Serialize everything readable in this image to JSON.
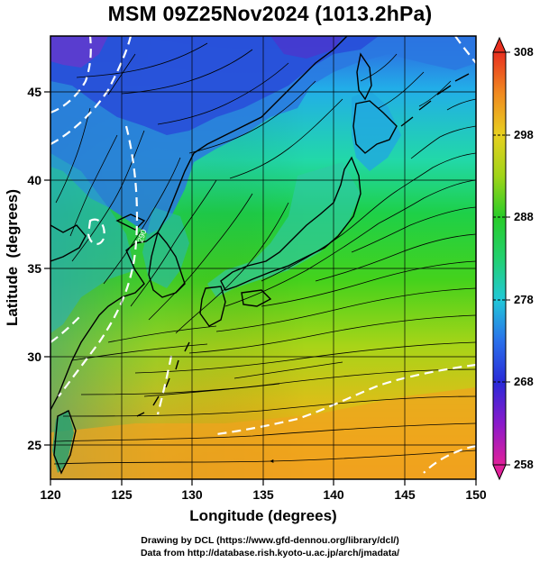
{
  "title": "MSM 09Z25Nov2024 (1013.2hPa)",
  "chart_data": {
    "type": "heatmap",
    "title": "MSM 09Z25Nov2024 (1013.2hPa)",
    "xlabel": "Longitude (degrees)",
    "ylabel": "Latitude  (degrees)",
    "xlim": [
      120,
      150
    ],
    "ylim": [
      22.5,
      47.6
    ],
    "x_ticks": [
      "120",
      "125",
      "130",
      "135",
      "140",
      "145",
      "150"
    ],
    "y_ticks": [
      "25",
      "30",
      "35",
      "40",
      "45"
    ],
    "grid": true,
    "colorbar": {
      "min": 258,
      "max": 308,
      "ticks": [
        "258",
        "268",
        "278",
        "288",
        "298",
        "308"
      ]
    },
    "contour_labels": [
      "290"
    ]
  },
  "footer": {
    "line1": "Drawing by DCL (https://www.gfd-dennou.org/library/dcl/)",
    "line2": "Data from http://database.rish.kyoto-u.ac.jp/arch/jmadata/"
  },
  "colors": {
    "sea_warm": "#e8a020",
    "sea_green": "#22cc22",
    "land_cold": "#2a40d0",
    "coast": "#000000",
    "contour": "#ffffff"
  }
}
